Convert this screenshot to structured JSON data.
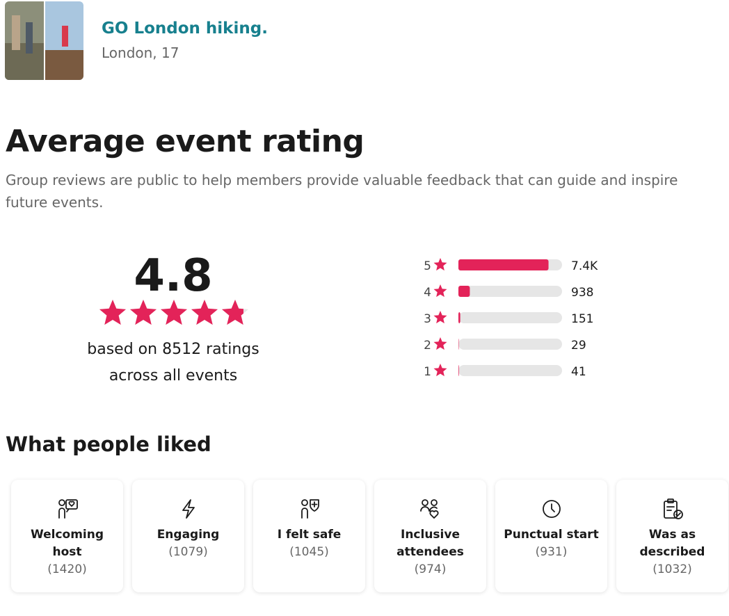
{
  "group": {
    "name": "GO London hiking.",
    "location": "London, 17"
  },
  "rating_section": {
    "title": "Average event rating",
    "description": "Group reviews are public to help members provide valuable feedback that can guide and inspire future events.",
    "rating": 4.8,
    "summary_prefix": "based on",
    "ratings_count": 8512,
    "summary_suffix": "ratings",
    "summary_line2": "across all events",
    "distribution": {
      "stars": [
        5,
        4,
        3,
        2,
        1
      ],
      "values": [
        7400,
        938,
        151,
        29,
        41
      ],
      "value_labels": [
        "7.4K",
        "938",
        "151",
        "29",
        "41"
      ],
      "color": "#e32359"
    }
  },
  "liked_section": {
    "title": "What people liked",
    "cards": [
      {
        "label": "Welcoming host",
        "count": "(1420)"
      },
      {
        "label": "Engaging",
        "count": "(1079)"
      },
      {
        "label": "I felt safe",
        "count": "(1045)"
      },
      {
        "label": "Inclusive attendees",
        "count": "(974)"
      },
      {
        "label": "Punctual start",
        "count": "(931)"
      },
      {
        "label": "Was as described",
        "count": "(1032)"
      }
    ]
  }
}
